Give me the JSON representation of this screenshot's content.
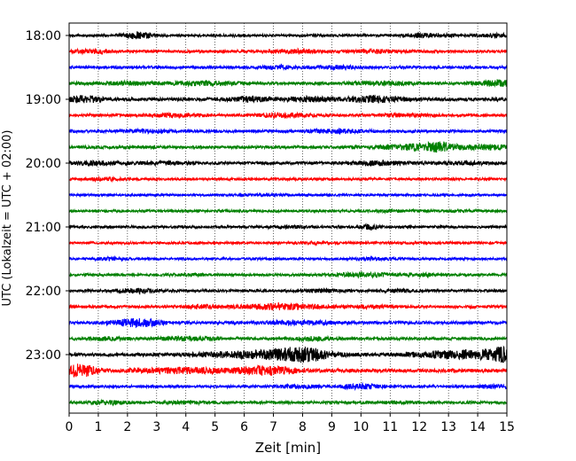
{
  "chart_data": {
    "type": "line",
    "title": "",
    "xlabel": "Zeit  [min]",
    "ylabel": "UTC (Lokalzeit = UTC + 02:00)",
    "xlim": [
      0,
      15
    ],
    "xticks": [
      0,
      1,
      2,
      3,
      4,
      5,
      6,
      7,
      8,
      9,
      10,
      11,
      12,
      13,
      14,
      15
    ],
    "yticks": [
      {
        "label": "18:00",
        "row": 0
      },
      {
        "label": "19:00",
        "row": 4
      },
      {
        "label": "20:00",
        "row": 8
      },
      {
        "label": "21:00",
        "row": 12
      },
      {
        "label": "22:00",
        "row": 16
      },
      {
        "label": "23:00",
        "row": 20
      }
    ],
    "row_interval_min": 15,
    "grid": {
      "vertical": true,
      "style": "dotted"
    },
    "color_cycle": [
      "#000000",
      "#ff0000",
      "#0000ff",
      "#008000"
    ],
    "series": [
      {
        "start": "18:00",
        "color": "#000000",
        "amp": 1.6,
        "bursts": [
          [
            2.4,
            0.35,
            2.5
          ],
          [
            12.3,
            0.6,
            1.2
          ],
          [
            14.6,
            0.4,
            1.0
          ]
        ]
      },
      {
        "start": "18:15",
        "color": "#ff0000",
        "amp": 1.8,
        "bursts": [
          [
            0.8,
            0.5,
            1.0
          ],
          [
            7.9,
            0.6,
            1.0
          ],
          [
            10.5,
            0.6,
            0.8
          ]
        ]
      },
      {
        "start": "18:30",
        "color": "#0000ff",
        "amp": 1.8,
        "bursts": [
          [
            7.2,
            0.5,
            0.8
          ],
          [
            9.2,
            0.5,
            0.8
          ]
        ]
      },
      {
        "start": "18:45",
        "color": "#008000",
        "amp": 1.9,
        "bursts": [
          [
            2.0,
            0.8,
            0.8
          ],
          [
            4.7,
            0.8,
            1.0
          ],
          [
            10.7,
            0.7,
            0.8
          ],
          [
            14.7,
            0.5,
            1.6
          ]
        ]
      },
      {
        "start": "19:00",
        "color": "#000000",
        "amp": 2.1,
        "bursts": [
          [
            0.5,
            0.4,
            1.8
          ],
          [
            6.2,
            0.5,
            1.2
          ],
          [
            8.2,
            0.5,
            1.2
          ],
          [
            10.4,
            0.7,
            1.6
          ]
        ]
      },
      {
        "start": "19:15",
        "color": "#ff0000",
        "amp": 1.8,
        "bursts": [
          [
            3.5,
            0.6,
            1.0
          ],
          [
            7.4,
            0.7,
            1.0
          ],
          [
            11.4,
            0.6,
            0.8
          ]
        ]
      },
      {
        "start": "19:30",
        "color": "#0000ff",
        "amp": 1.8,
        "bursts": [
          [
            2.7,
            0.5,
            0.8
          ],
          [
            9.2,
            0.7,
            0.9
          ]
        ]
      },
      {
        "start": "19:45",
        "color": "#008000",
        "amp": 1.9,
        "bursts": [
          [
            11.7,
            0.7,
            1.6
          ],
          [
            12.7,
            0.35,
            2.6
          ],
          [
            14.3,
            0.7,
            1.2
          ]
        ]
      },
      {
        "start": "20:00",
        "color": "#000000",
        "amp": 1.8,
        "bursts": [
          [
            1.0,
            0.6,
            1.0
          ],
          [
            3.2,
            0.5,
            0.9
          ],
          [
            10.6,
            0.7,
            1.2
          ],
          [
            13.6,
            0.6,
            0.8
          ]
        ]
      },
      {
        "start": "20:15",
        "color": "#ff0000",
        "amp": 1.6,
        "bursts": [
          [
            1.2,
            0.4,
            0.9
          ]
        ]
      },
      {
        "start": "20:30",
        "color": "#0000ff",
        "amp": 1.4,
        "bursts": [
          [
            6.7,
            0.5,
            0.6
          ]
        ]
      },
      {
        "start": "20:45",
        "color": "#008000",
        "amp": 1.5,
        "bursts": [
          [
            11.0,
            0.6,
            0.6
          ],
          [
            13.3,
            0.4,
            0.6
          ]
        ]
      },
      {
        "start": "21:00",
        "color": "#000000",
        "amp": 1.6,
        "bursts": [
          [
            10.3,
            0.2,
            1.6
          ],
          [
            7.5,
            0.5,
            0.6
          ]
        ]
      },
      {
        "start": "21:15",
        "color": "#ff0000",
        "amp": 1.5,
        "bursts": [
          [
            8.4,
            0.4,
            0.6
          ]
        ]
      },
      {
        "start": "21:30",
        "color": "#0000ff",
        "amp": 1.5,
        "bursts": [
          [
            1.4,
            0.4,
            0.9
          ],
          [
            10.4,
            0.5,
            0.6
          ]
        ]
      },
      {
        "start": "21:45",
        "color": "#008000",
        "amp": 1.6,
        "bursts": [
          [
            10.2,
            0.7,
            1.4
          ],
          [
            12.2,
            0.5,
            0.8
          ],
          [
            4.1,
            0.4,
            0.6
          ]
        ]
      },
      {
        "start": "22:00",
        "color": "#000000",
        "amp": 1.7,
        "bursts": [
          [
            2.3,
            0.5,
            1.3
          ],
          [
            8.6,
            0.5,
            0.8
          ],
          [
            11.3,
            0.4,
            0.7
          ]
        ]
      },
      {
        "start": "22:15",
        "color": "#ff0000",
        "amp": 1.8,
        "bursts": [
          [
            7.3,
            0.9,
            1.9
          ],
          [
            4.6,
            0.5,
            0.8
          ],
          [
            10.3,
            0.4,
            0.6
          ]
        ]
      },
      {
        "start": "22:30",
        "color": "#0000ff",
        "amp": 1.9,
        "bursts": [
          [
            2.3,
            0.6,
            2.3
          ],
          [
            7.8,
            0.9,
            0.9
          ]
        ]
      },
      {
        "start": "22:45",
        "color": "#008000",
        "amp": 1.8,
        "bursts": [
          [
            4.0,
            0.7,
            1.0
          ],
          [
            8.4,
            0.5,
            1.0
          ],
          [
            1.3,
            0.5,
            0.8
          ]
        ]
      },
      {
        "start": "23:00",
        "color": "#000000",
        "amp": 2.0,
        "bursts": [
          [
            8.0,
            0.7,
            3.4
          ],
          [
            6.5,
            1.5,
            1.8
          ],
          [
            13.5,
            1.2,
            2.4
          ],
          [
            14.9,
            0.4,
            3.2
          ]
        ]
      },
      {
        "start": "23:15",
        "color": "#ff0000",
        "amp": 2.3,
        "bursts": [
          [
            0.4,
            0.35,
            3.2
          ],
          [
            6.8,
            0.7,
            2.0
          ],
          [
            4.0,
            1.0,
            1.2
          ]
        ]
      },
      {
        "start": "23:30",
        "color": "#0000ff",
        "amp": 1.7,
        "bursts": [
          [
            10.0,
            0.5,
            1.4
          ],
          [
            14.6,
            0.5,
            1.0
          ],
          [
            7.8,
            0.6,
            0.8
          ]
        ]
      },
      {
        "start": "23:45",
        "color": "#008000",
        "amp": 1.7,
        "bursts": [
          [
            1.3,
            0.4,
            1.3
          ],
          [
            4.0,
            0.5,
            0.8
          ],
          [
            11.3,
            0.5,
            0.6
          ]
        ]
      }
    ]
  }
}
